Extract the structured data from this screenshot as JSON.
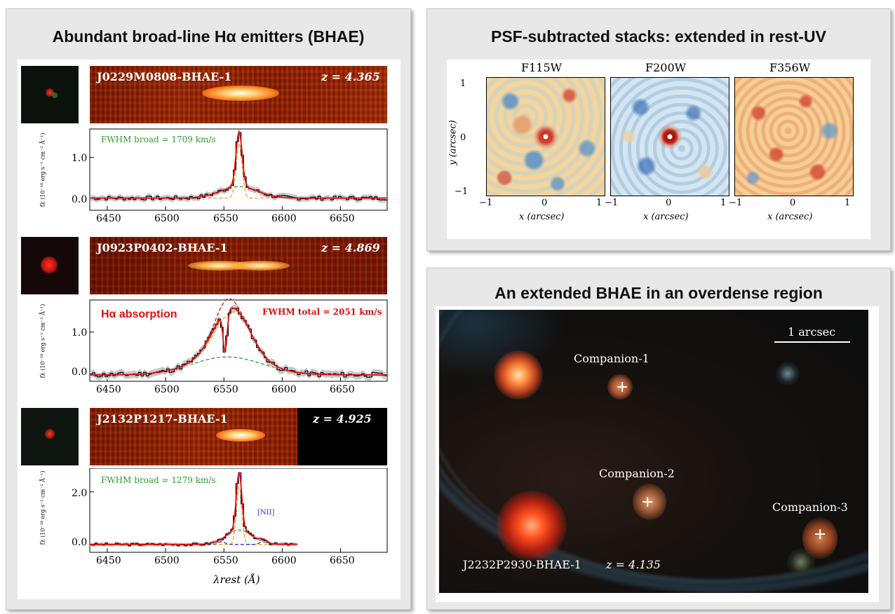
{
  "left_panel": {
    "title": "Abundant broad-line Hα emitters (BHAE)",
    "objects": [
      {
        "name": "J0229M0808-BHAE-1",
        "redshift": "z = 4.365",
        "annotation": "FWHM broad = 1709 km/s",
        "annotation_color": "#2f9e2f",
        "yticks": [
          "0.0",
          "1.0"
        ],
        "xticks": [
          "6450",
          "6500",
          "6550",
          "6600",
          "6650"
        ],
        "ylabel": "fλ (10⁻¹⁸ erg s⁻¹ cm⁻² Å⁻¹)"
      },
      {
        "name": "J0923P0402-BHAE-1",
        "redshift": "z = 4.869",
        "annotation": "FWHM total = 2051 km/s",
        "annotation_color": "#e01010",
        "extra_label": "Hα absorption",
        "yticks": [
          "0.0",
          "1.0"
        ],
        "xticks": [
          "6450",
          "6500",
          "6550",
          "6600",
          "6650"
        ],
        "ylabel": "fλ (10⁻¹⁸ erg s⁻¹ cm⁻² Å⁻¹)"
      },
      {
        "name": "J2132P1217-BHAE-1",
        "redshift": "z = 4.925",
        "annotation": "FWHM broad = 1279 km/s",
        "annotation_color": "#2f9e2f",
        "line_label": "[NII]",
        "yticks": [
          "0.0",
          "2.0"
        ],
        "xticks": [
          "6450",
          "6500",
          "6550",
          "6600",
          "6650"
        ],
        "ylabel": "fλ (10⁻¹⁸ erg s⁻¹ cm⁻² Å⁻¹)"
      }
    ],
    "xlabel": "λrest (Å)"
  },
  "top_right_panel": {
    "title": "PSF-subtracted stacks: extended in rest-UV",
    "filters": [
      "F115W",
      "F200W",
      "F356W"
    ],
    "ylabel": "y (arcsec)",
    "xlabel": "x (arcsec)",
    "ticks": [
      "−1",
      "0",
      "1"
    ]
  },
  "bottom_right_panel": {
    "title": "An extended BHAE in an overdense region",
    "scale_label": "1 arcsec",
    "companions": [
      "Companion-1",
      "Companion-2",
      "Companion-3"
    ],
    "target_label": "J2232P2930-BHAE-1",
    "target_redshift": "z = 4.135"
  },
  "chart_data": [
    {
      "type": "line",
      "title": "J0229M0808-BHAE-1",
      "xlabel": "λrest (Å)",
      "ylabel": "fλ (10⁻¹⁸ erg s⁻¹ cm⁻² Å⁻¹)",
      "xlim": [
        6435,
        6690
      ],
      "ylim": [
        -0.3,
        1.7
      ],
      "series": [
        {
          "name": "FWHM broad = 1709 km/s",
          "values": [
            {
              "center": 6563,
              "fwhm_kms": 1709,
              "amplitude": 0.28
            }
          ]
        }
      ],
      "narrow_component": {
        "center": 6563,
        "amplitude": 1.35,
        "width": 2.5
      },
      "total_peak": 1.62
    },
    {
      "type": "line",
      "title": "J0923P0402-BHAE-1",
      "xlabel": "λrest (Å)",
      "ylabel": "fλ (10⁻¹⁸ erg s⁻¹ cm⁻² Å⁻¹)",
      "xlim": [
        6435,
        6690
      ],
      "ylim": [
        -0.15,
        1.75
      ],
      "total_fwhm_kms": 2051,
      "peak": 1.6,
      "absorption_center": 6551,
      "absorption_depth_to": 0.55
    },
    {
      "type": "line",
      "title": "J2132P1217-BHAE-1",
      "xlabel": "λrest (Å)",
      "ylabel": "fλ (10⁻¹⁸ erg s⁻¹ cm⁻² Å⁻¹)",
      "xlim": [
        6435,
        6690
      ],
      "ylim": [
        -0.3,
        2.9
      ],
      "broad_fwhm_kms": 1279,
      "peak": 2.75,
      "data_end": 6613
    }
  ]
}
